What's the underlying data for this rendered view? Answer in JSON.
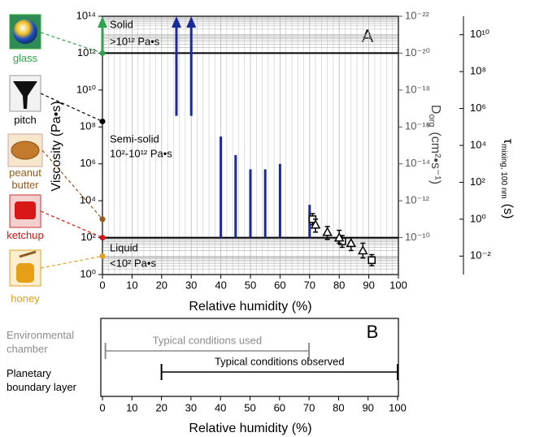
{
  "chart_data": [
    {
      "type": "range",
      "panel": "A",
      "xlabel": "Relative humidity (%)",
      "ylabel": "Viscosity (Pa•s)",
      "xlim": [
        0,
        100
      ],
      "xticks": [
        0,
        10,
        20,
        30,
        40,
        50,
        60,
        70,
        80,
        90,
        100
      ],
      "ylog": true,
      "ylim": [
        1,
        100000000000000.0
      ],
      "yticks": [
        {
          "value": 1,
          "label": "10⁰"
        },
        {
          "value": 100,
          "label": "10²"
        },
        {
          "value": 10000,
          "label": "10⁴"
        },
        {
          "value": 1000000,
          "label": "10⁶"
        },
        {
          "value": 100000000,
          "label": "10⁸"
        },
        {
          "value": 10000000000.0,
          "label": "10¹⁰"
        },
        {
          "value": 1000000000000.0,
          "label": "10¹²"
        },
        {
          "value": 100000000000000.0,
          "label": "10¹⁴"
        }
      ],
      "y2label": {
        "symbol": "D",
        "subscript": "org",
        "unit": "(cm²•s⁻¹)"
      },
      "y2lim": [
        1e-08,
        1e-22
      ],
      "y2ticks": [
        {
          "value": 1e-10,
          "label": "10⁻¹⁰"
        },
        {
          "value": 1e-12,
          "label": "10⁻¹²"
        },
        {
          "value": 1e-14,
          "label": "10⁻¹⁴"
        },
        {
          "value": 1e-16,
          "label": "10⁻¹⁶"
        },
        {
          "value": 1e-18,
          "label": "10⁻¹⁸"
        },
        {
          "value": 1e-20,
          "label": "10⁻²⁰"
        },
        {
          "value": 1e-22,
          "label": "10⁻²²"
        }
      ],
      "y3label": {
        "symbol": "τ",
        "subscript": "mixing, 100 nm",
        "unit": "(s)"
      },
      "y3lim": [
        0.001,
        100000000000.0
      ],
      "y3ticks": [
        {
          "value": 0.01,
          "label": "10⁻²"
        },
        {
          "value": 1,
          "label": "10⁰"
        },
        {
          "value": 100,
          "label": "10²"
        },
        {
          "value": 10000,
          "label": "10⁴"
        },
        {
          "value": 1000000,
          "label": "10⁶"
        },
        {
          "value": 100000000,
          "label": "10⁸"
        },
        {
          "value": 10000000000.0,
          "label": "10¹⁰"
        }
      ],
      "phase_boundaries": [
        100,
        1000000000000.0
      ],
      "phases": [
        {
          "name": "Solid",
          "range": ">10¹² Pa•s"
        },
        {
          "name": "Semi-solid",
          "range": "10²-10¹² Pa•s"
        },
        {
          "name": "Liquid",
          "range": "<10² Pa•s"
        }
      ],
      "series": [
        {
          "type": "range",
          "color": "#1b2a9a",
          "x": [
            25,
            30,
            40,
            45,
            50,
            55,
            60,
            70
          ],
          "low": [
            400000000.0,
            400000000.0,
            100,
            100,
            100,
            100,
            100,
            100
          ],
          "high": [
            100000000000000.0,
            100000000000000.0,
            30000000.0,
            3000000,
            500000,
            500000,
            1000000,
            6000
          ],
          "open_ended": [
            true,
            true,
            false,
            false,
            false,
            false,
            false,
            false
          ]
        },
        {
          "type": "scatter",
          "marker": "square",
          "color": "#000000",
          "x": [
            71,
            81,
            91
          ],
          "values": [
            1000,
            63,
            6
          ],
          "low": [
            500,
            30,
            3
          ],
          "high": [
            2000,
            130,
            12
          ]
        },
        {
          "type": "scatter",
          "marker": "triangle",
          "color": "#000000",
          "x": [
            72,
            76,
            80,
            84,
            88
          ],
          "values": [
            500,
            200,
            100,
            50,
            20
          ],
          "low": [
            200,
            80,
            50,
            20,
            8
          ],
          "high": [
            1000,
            400,
            250,
            100,
            50
          ]
        }
      ],
      "materials": [
        {
          "label": "glass",
          "color": "#2ea44a",
          "x": 0,
          "value": 1000000000000.0,
          "open_ended": true
        },
        {
          "label": "pitch",
          "color": "#000000",
          "x": 0,
          "value": 200000000,
          "open_ended": false
        },
        {
          "label": "peanut butter",
          "color": "#9a5a1a",
          "x": 0,
          "value": 1000,
          "open_ended": false
        },
        {
          "label": "ketchup",
          "color": "#e01010",
          "x": 0,
          "value": 100,
          "open_ended": false
        },
        {
          "label": "honey",
          "color": "#e0a020",
          "x": 0,
          "value": 10,
          "open_ended": false
        }
      ]
    },
    {
      "type": "span",
      "panel": "B",
      "xlabel": "Relative humidity (%)",
      "xlim": [
        0,
        100
      ],
      "xticks": [
        0,
        10,
        20,
        30,
        40,
        50,
        60,
        70,
        80,
        90,
        100
      ],
      "rows": [
        {
          "name": "Environmental chamber",
          "label": "Typical conditions used",
          "color": "#8c8c8c",
          "values": [
            1,
            70
          ]
        },
        {
          "name": "Planetary boundary layer",
          "label": "Typical conditions observed",
          "color": "#000000",
          "values": [
            20,
            100
          ]
        }
      ]
    }
  ]
}
